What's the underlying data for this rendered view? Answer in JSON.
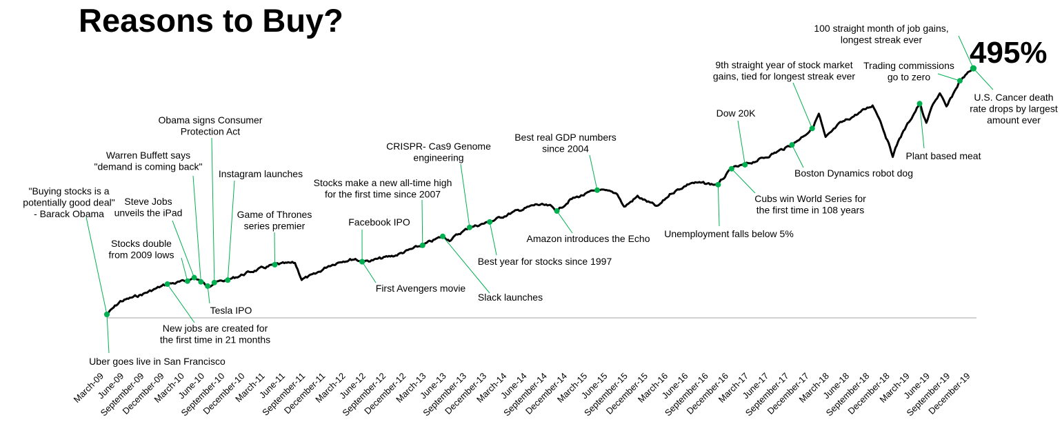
{
  "chart_data": {
    "type": "line",
    "title": "Reasons to Buy?",
    "total_label": "495%",
    "ylabel": "",
    "xlabel": "",
    "ylim": [
      0,
      495
    ],
    "grid": false,
    "legend": "none",
    "colors": {
      "line": "#000000",
      "marker": "#00b050",
      "leader": "#00b050",
      "axis": "#a6a6a6"
    },
    "x_ticks": [
      "March-09",
      "June-09",
      "September-09",
      "December-09",
      "March-10",
      "June-10",
      "September-10",
      "December-10",
      "March-11",
      "June-11",
      "September-11",
      "December-11",
      "March-12",
      "June-12",
      "September-12",
      "December-12",
      "March-13",
      "June-13",
      "September-13",
      "December-13",
      "March-14",
      "June-14",
      "September-14",
      "December-14",
      "March-15",
      "June-15",
      "September-15",
      "December-15",
      "March-16",
      "June-16",
      "September-16",
      "December-16",
      "March-17",
      "June-17",
      "September-17",
      "December-17",
      "March-18",
      "June-18",
      "September-18",
      "December-18",
      "March-19",
      "June-19",
      "September-19",
      "December-19"
    ],
    "series": [
      {
        "points": [
          [
            "2009-03",
            0
          ],
          [
            "2009-05",
            26
          ],
          [
            "2009-08",
            39
          ],
          [
            "2009-12",
            61
          ],
          [
            "2010-03",
            67
          ],
          [
            "2010-04",
            74
          ],
          [
            "2010-06",
            57
          ],
          [
            "2010-07",
            64
          ],
          [
            "2010-09",
            69
          ],
          [
            "2010-12",
            84
          ],
          [
            "2011-04",
            100
          ],
          [
            "2011-07",
            103
          ],
          [
            "2011-08",
            71
          ],
          [
            "2011-10",
            80
          ],
          [
            "2011-12",
            98
          ],
          [
            "2012-02",
            108
          ],
          [
            "2012-04",
            112
          ],
          [
            "2012-05",
            106
          ],
          [
            "2012-07",
            110
          ],
          [
            "2012-10",
            119
          ],
          [
            "2013-02",
            139
          ],
          [
            "2013-05",
            157
          ],
          [
            "2013-06",
            150
          ],
          [
            "2013-09",
            175
          ],
          [
            "2013-12",
            186
          ],
          [
            "2014-03",
            203
          ],
          [
            "2014-07",
            221
          ],
          [
            "2014-09",
            217
          ],
          [
            "2014-10",
            208
          ],
          [
            "2014-12",
            231
          ],
          [
            "2015-04",
            250
          ],
          [
            "2015-07",
            243
          ],
          [
            "2015-08",
            216
          ],
          [
            "2015-10",
            237
          ],
          [
            "2016-01",
            216
          ],
          [
            "2016-03",
            244
          ],
          [
            "2016-06",
            265
          ],
          [
            "2016-10",
            261
          ],
          [
            "2016-12",
            293
          ],
          [
            "2017-02",
            301
          ],
          [
            "2017-05",
            316
          ],
          [
            "2017-09",
            341
          ],
          [
            "2017-12",
            374
          ],
          [
            "2018-01",
            403
          ],
          [
            "2018-02",
            354
          ],
          [
            "2018-04",
            382
          ],
          [
            "2018-09",
            421
          ],
          [
            "2018-10",
            396
          ],
          [
            "2018-12",
            320
          ],
          [
            "2019-01",
            354
          ],
          [
            "2019-04",
            424
          ],
          [
            "2019-05",
            383
          ],
          [
            "2019-06",
            424
          ],
          [
            "2019-07",
            444
          ],
          [
            "2019-08",
            416
          ],
          [
            "2019-10",
            470
          ],
          [
            "2019-12",
            495
          ]
        ]
      }
    ],
    "annotations": [
      {
        "date": "2009-03",
        "lines": [
          "\"Buying stocks is a",
          "potentially good deal\"",
          "- Barack Obama"
        ]
      },
      {
        "date": "2009-03",
        "lines": [
          "Uber goes live in San Francisco"
        ]
      },
      {
        "date": "2010-03",
        "lines": [
          "Stocks double",
          "from 2009 lows"
        ]
      },
      {
        "date": "2010-04",
        "lines": [
          "Steve Jobs",
          "unveils the iPad"
        ]
      },
      {
        "date": "2010-05",
        "lines": [
          "Warren Buffett says",
          "\"demand is coming back\""
        ]
      },
      {
        "date": "2010-07",
        "lines": [
          "Obama signs Consumer",
          "Protection Act"
        ]
      },
      {
        "date": "2010-09",
        "lines": [
          "Instagram launches"
        ]
      },
      {
        "date": "2010-06",
        "lines": [
          "Tesla IPO"
        ]
      },
      {
        "date": "2009-12",
        "lines": [
          "New jobs are created for",
          "the first time in 21 months"
        ]
      },
      {
        "date": "2011-04",
        "lines": [
          "Game of Thrones",
          "series premier"
        ]
      },
      {
        "date": "2012-05",
        "lines": [
          "Facebook IPO"
        ]
      },
      {
        "date": "2012-05",
        "lines": [
          "First Avengers movie"
        ]
      },
      {
        "date": "2013-02",
        "lines": [
          "Stocks make a new all-time high",
          "for the first time since 2007"
        ]
      },
      {
        "date": "2013-09",
        "lines": [
          "CRISPR- Cas9 Genome",
          "engineering"
        ]
      },
      {
        "date": "2013-05",
        "lines": [
          "Slack launches"
        ]
      },
      {
        "date": "2013-12",
        "lines": [
          "Best year for stocks since 1997"
        ]
      },
      {
        "date": "2014-10",
        "lines": [
          "Amazon introduces the Echo"
        ]
      },
      {
        "date": "2015-04",
        "lines": [
          "Best real GDP numbers",
          "since 2004"
        ]
      },
      {
        "date": "2016-10",
        "lines": [
          "Unemployment falls below 5%"
        ]
      },
      {
        "date": "2017-02",
        "lines": [
          "Dow 20K"
        ]
      },
      {
        "date": "2016-12",
        "lines": [
          "Cubs win World Series for",
          "the first time in 108 years"
        ]
      },
      {
        "date": "2017-09",
        "lines": [
          "Boston Dynamics robot dog"
        ]
      },
      {
        "date": "2017-12",
        "lines": [
          "9th straight year of stock market",
          "gains, tied for longest streak ever"
        ]
      },
      {
        "date": "2019-04",
        "lines": [
          "Plant based meat"
        ]
      },
      {
        "date": "2019-10",
        "lines": [
          "Trading commissions",
          "go to zero"
        ]
      },
      {
        "date": "2019-12",
        "lines": [
          "100 straight month of job gains,",
          "longest streak ever"
        ]
      },
      {
        "date": "2019-12",
        "lines": [
          "U.S. Cancer death",
          "rate drops by largest",
          "amount ever"
        ]
      }
    ]
  }
}
